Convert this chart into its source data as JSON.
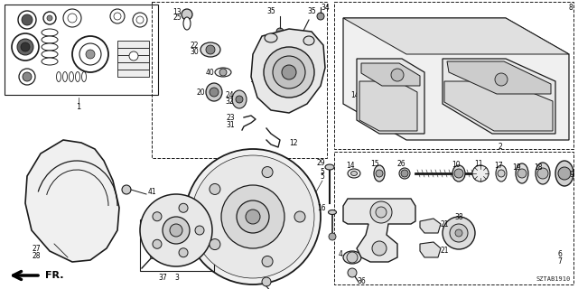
{
  "background_color": "#ffffff",
  "diagram_code": "SZTAB1910",
  "figsize": [
    6.4,
    3.2
  ],
  "dpi": 100,
  "line_color": "#1a1a1a",
  "label_color": "#000000",
  "font_size": 6.0
}
